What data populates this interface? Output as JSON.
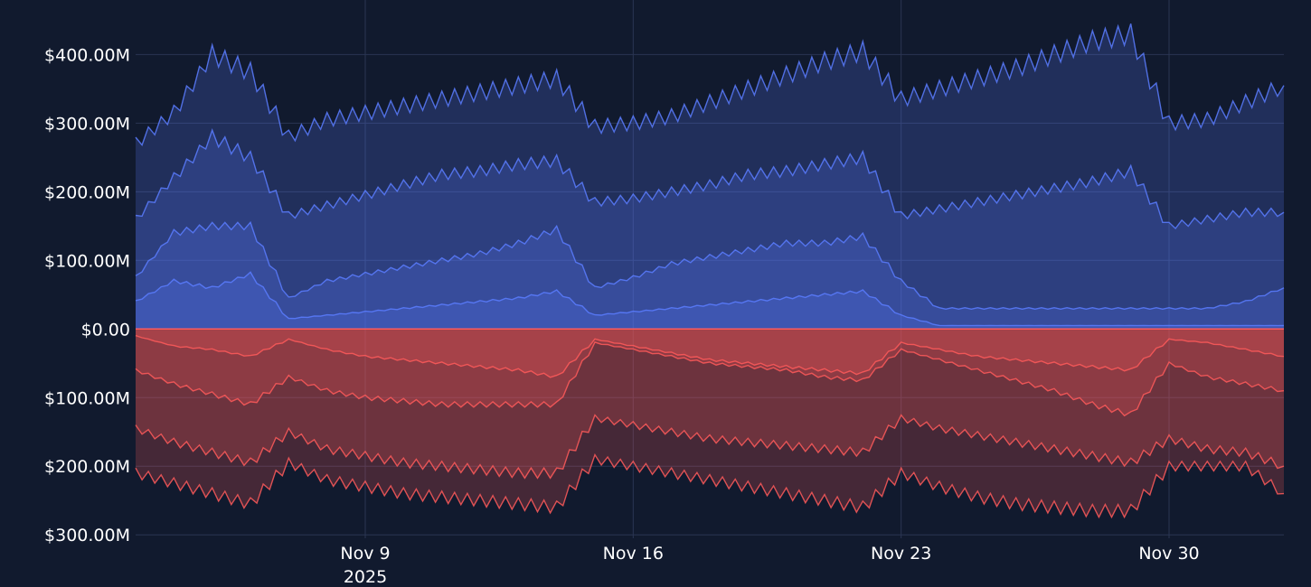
{
  "chart_data": {
    "type": "area",
    "y_tick_labels": [
      {
        "value": 400,
        "label": "$400.00M"
      },
      {
        "value": 300,
        "label": "$300.00M"
      },
      {
        "value": 200,
        "label": "$200.00M"
      },
      {
        "value": 100,
        "label": "$100.00M"
      },
      {
        "value": 0,
        "label": "$0.00"
      },
      {
        "value": -100,
        "label": "$100.00M"
      },
      {
        "value": -200,
        "label": "$200.00M"
      },
      {
        "value": -300,
        "label": "$300.00M"
      }
    ],
    "x_tick_labels": [
      {
        "date": "2025-11-09",
        "label": "Nov 9",
        "sublabel": "2025"
      },
      {
        "date": "2025-11-16",
        "label": "Nov 16",
        "sublabel": ""
      },
      {
        "date": "2025-11-23",
        "label": "Nov 23",
        "sublabel": ""
      },
      {
        "date": "2025-11-30",
        "label": "Nov 30",
        "sublabel": ""
      }
    ],
    "x_range": [
      "2025-11-03",
      "2025-12-03"
    ],
    "y_range": [
      -305,
      440
    ],
    "grid": true,
    "colors": {
      "background": "#111a2e",
      "grid": "#2a3552",
      "long": "#5b7cff",
      "short": "#ff5a5a"
    },
    "long_series": {
      "x": [
        "2025-11-03",
        "2025-11-04",
        "2025-11-05",
        "2025-11-06",
        "2025-11-07",
        "2025-11-08",
        "2025-11-09",
        "2025-11-10",
        "2025-11-11",
        "2025-11-12",
        "2025-11-13",
        "2025-11-14",
        "2025-11-15",
        "2025-11-16",
        "2025-11-17",
        "2025-11-18",
        "2025-11-19",
        "2025-11-20",
        "2025-11-21",
        "2025-11-22",
        "2025-11-23",
        "2025-11-24",
        "2025-11-25",
        "2025-11-26",
        "2025-11-27",
        "2025-11-28",
        "2025-11-29",
        "2025-11-30",
        "2025-12-01",
        "2025-12-02",
        "2025-12-03"
      ],
      "layers": [
        {
          "values": [
            40,
            70,
            60,
            80,
            15,
            20,
            25,
            30,
            35,
            40,
            45,
            55,
            20,
            25,
            30,
            35,
            40,
            45,
            50,
            55,
            20,
            5,
            5,
            5,
            5,
            5,
            5,
            5,
            5,
            5,
            5
          ]
        },
        {
          "values": [
            75,
            140,
            150,
            150,
            45,
            70,
            80,
            90,
            100,
            110,
            125,
            145,
            60,
            75,
            95,
            105,
            115,
            125,
            125,
            135,
            70,
            30,
            30,
            30,
            30,
            30,
            30,
            30,
            30,
            40,
            60
          ]
        },
        {
          "values": [
            160,
            220,
            280,
            250,
            165,
            180,
            195,
            210,
            225,
            230,
            240,
            245,
            185,
            190,
            200,
            210,
            225,
            230,
            240,
            250,
            165,
            175,
            185,
            195,
            205,
            215,
            230,
            150,
            160,
            170,
            170
          ]
        },
        {
          "values": [
            270,
            315,
            400,
            375,
            280,
            305,
            315,
            325,
            335,
            345,
            355,
            365,
            295,
            300,
            310,
            330,
            350,
            370,
            390,
            405,
            335,
            350,
            365,
            380,
            400,
            420,
            430,
            300,
            305,
            330,
            355
          ]
        }
      ]
    },
    "short_series": {
      "x": [
        "2025-11-03",
        "2025-11-04",
        "2025-11-05",
        "2025-11-06",
        "2025-11-07",
        "2025-11-08",
        "2025-11-09",
        "2025-11-10",
        "2025-11-11",
        "2025-11-12",
        "2025-11-13",
        "2025-11-14",
        "2025-11-15",
        "2025-11-16",
        "2025-11-17",
        "2025-11-18",
        "2025-11-19",
        "2025-11-20",
        "2025-11-21",
        "2025-11-22",
        "2025-11-23",
        "2025-11-24",
        "2025-11-25",
        "2025-11-26",
        "2025-11-27",
        "2025-11-28",
        "2025-11-29",
        "2025-11-30",
        "2025-12-01",
        "2025-12-02",
        "2025-12-03"
      ],
      "layers": [
        {
          "values": [
            -10,
            -25,
            -30,
            -40,
            -15,
            -30,
            -40,
            -45,
            -50,
            -55,
            -60,
            -70,
            -15,
            -25,
            -35,
            -45,
            -50,
            -55,
            -60,
            -65,
            -20,
            -30,
            -40,
            -45,
            -50,
            -55,
            -60,
            -15,
            -20,
            -30,
            -40
          ]
        },
        {
          "values": [
            -60,
            -80,
            -95,
            -110,
            -70,
            -90,
            -100,
            -105,
            -110,
            -110,
            -110,
            -110,
            -20,
            -30,
            -40,
            -50,
            -55,
            -60,
            -70,
            -75,
            -30,
            -45,
            -60,
            -75,
            -90,
            -110,
            -125,
            -50,
            -70,
            -80,
            -90
          ]
        },
        {
          "values": [
            -145,
            -165,
            -180,
            -195,
            -150,
            -175,
            -185,
            -195,
            -200,
            -205,
            -210,
            -210,
            -130,
            -140,
            -150,
            -160,
            -165,
            -170,
            -175,
            -180,
            -130,
            -145,
            -155,
            -165,
            -175,
            -185,
            -195,
            -160,
            -175,
            -180,
            -200
          ]
        },
        {
          "values": [
            -210,
            -225,
            -240,
            -255,
            -195,
            -220,
            -230,
            -240,
            -245,
            -250,
            -255,
            -260,
            -190,
            -200,
            -210,
            -220,
            -230,
            -240,
            -250,
            -260,
            -210,
            -230,
            -245,
            -255,
            -260,
            -265,
            -265,
            -200,
            -200,
            -200,
            -240
          ]
        }
      ]
    }
  }
}
